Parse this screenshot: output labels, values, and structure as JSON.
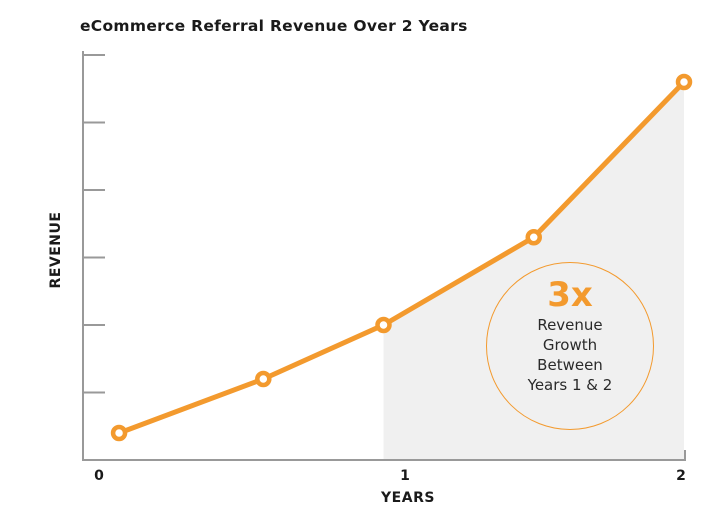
{
  "chart_data": {
    "type": "line",
    "title": "eCommerce Referral Revenue Over 2 Years",
    "xlabel": "YEARS",
    "ylabel": "REVENUE",
    "x_ticks": [
      "0",
      "1",
      "2"
    ],
    "xlim": [
      0,
      2
    ],
    "ylim": [
      0,
      6
    ],
    "y_tick_labels": [],
    "grid": false,
    "legend": null,
    "series": [
      {
        "name": "Revenue",
        "color": "#f39a2e",
        "x": [
          0.12,
          0.6,
          1.0,
          1.5,
          2.0
        ],
        "y": [
          0.4,
          1.2,
          2.0,
          3.3,
          5.6
        ]
      }
    ],
    "shaded_region": {
      "x_from": 1,
      "x_to": 2,
      "color": "#f0f0f0"
    },
    "annotation": {
      "headline": "3x",
      "lines": [
        "Revenue",
        "Growth",
        "Between",
        "Years 1 & 2"
      ]
    }
  },
  "colors": {
    "accent": "#f39a2e",
    "axis": "#999999",
    "shade": "#f0f0f0",
    "text": "#1a1a1a"
  }
}
